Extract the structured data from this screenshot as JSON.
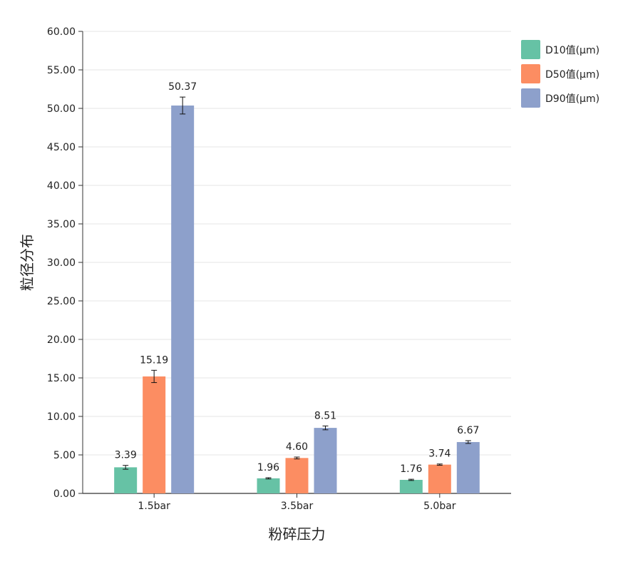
{
  "chart_data": {
    "type": "bar",
    "title": "",
    "xlabel": "粉碎压力",
    "ylabel": "粒径分布",
    "categories": [
      "1.5bar",
      "3.5bar",
      "5.0bar"
    ],
    "ylim": [
      0,
      60
    ],
    "y_ticks": [
      "0.00",
      "5.00",
      "10.00",
      "15.00",
      "20.00",
      "25.00",
      "30.00",
      "35.00",
      "40.00",
      "45.00",
      "50.00",
      "55.00",
      "60.00"
    ],
    "grid": true,
    "legend": "top-right",
    "series": [
      {
        "name": "D10值(μm)",
        "color": "#66c2a5",
        "values": [
          3.39,
          1.96,
          1.76
        ],
        "labels": [
          "3.39",
          "1.96",
          "1.76"
        ],
        "errors": [
          0.25,
          0.08,
          0.08
        ]
      },
      {
        "name": "D50值(μm)",
        "color": "#fc8d62",
        "values": [
          15.19,
          4.6,
          3.74
        ],
        "labels": [
          "15.19",
          "4.60",
          "3.74"
        ],
        "errors": [
          0.8,
          0.12,
          0.08
        ]
      },
      {
        "name": "D90值(μm)",
        "color": "#8da0cb",
        "values": [
          50.37,
          8.51,
          6.67
        ],
        "labels": [
          "50.37",
          "8.51",
          "6.67"
        ],
        "errors": [
          1.1,
          0.25,
          0.18
        ]
      }
    ]
  }
}
